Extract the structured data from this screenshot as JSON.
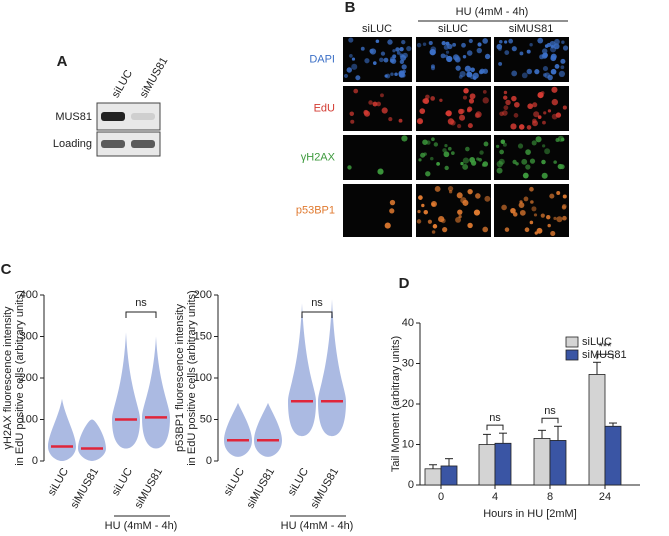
{
  "blot": {
    "label": "A",
    "columns": [
      "siLUC",
      "siMUS81"
    ],
    "rows": [
      "MUS81",
      "Loading"
    ]
  },
  "microscopy": {
    "label": "B",
    "header": "HU (4mM - 4h)",
    "columns": [
      "siLUC",
      "siLUC",
      "siMUS81"
    ],
    "rows": [
      {
        "name": "DAPI",
        "color": "#3b6fc6"
      },
      {
        "name": "EdU",
        "color": "#d33a32"
      },
      {
        "name": "γH2AX",
        "color": "#3d9a3d"
      },
      {
        "name": "p53BP1",
        "color": "#e07a30"
      }
    ]
  },
  "panel_c_label": "C",
  "panel_d_label": "D",
  "chart_data": [
    {
      "type": "swarm",
      "ylabel": [
        "γH2AX fluorescence intensity",
        "in EdU positive cells (arbitrary units)"
      ],
      "categories": [
        "siLUC",
        "siMUS81",
        "siLUC",
        "siMUS81"
      ],
      "group_label": "HU (4mM - 4h)",
      "medians": [
        35,
        30,
        100,
        105
      ],
      "lows": [
        0,
        0,
        30,
        30
      ],
      "highs": [
        150,
        100,
        310,
        300
      ],
      "color": "#8fa3d8",
      "median_color": "#e0253a",
      "annotations": [
        "ns"
      ],
      "ylim": [
        0,
        400
      ],
      "yticks": [
        0,
        100,
        200,
        300,
        400
      ]
    },
    {
      "type": "swarm",
      "ylabel": [
        "p53BP1 fluorescence intensity",
        "in EdU positive cells (arbitrary units)"
      ],
      "categories": [
        "siLUC",
        "siMUS81",
        "siLUC",
        "siMUS81"
      ],
      "group_label": "HU (4mM - 4h)",
      "medians": [
        25,
        25,
        72,
        72
      ],
      "lows": [
        5,
        5,
        30,
        30
      ],
      "highs": [
        70,
        70,
        190,
        195
      ],
      "color": "#8fa3d8",
      "median_color": "#e0253a",
      "annotations": [
        "ns"
      ],
      "ylim": [
        0,
        200
      ],
      "yticks": [
        0,
        50,
        100,
        150,
        200
      ]
    },
    {
      "type": "bar",
      "xlabel": "Hours in HU [2mM]",
      "ylabel": "Tail Moment (arbitrary units)",
      "categories": [
        "0",
        "4",
        "8",
        "24"
      ],
      "series": [
        {
          "name": "siLUC",
          "color": "#d4d4d4",
          "values": [
            4,
            10,
            11.5,
            27.3
          ],
          "errors": [
            1,
            2.5,
            2,
            3
          ]
        },
        {
          "name": "siMUS81",
          "color": "#3a55a4",
          "values": [
            4.7,
            10.3,
            11,
            14.5
          ],
          "errors": [
            1.8,
            2.5,
            3.5,
            0.8
          ]
        }
      ],
      "annotations": [
        "ns",
        "ns",
        "***"
      ],
      "legend": "top-right",
      "ylim": [
        0,
        40
      ],
      "yticks": [
        0,
        10,
        20,
        30,
        40
      ]
    }
  ]
}
